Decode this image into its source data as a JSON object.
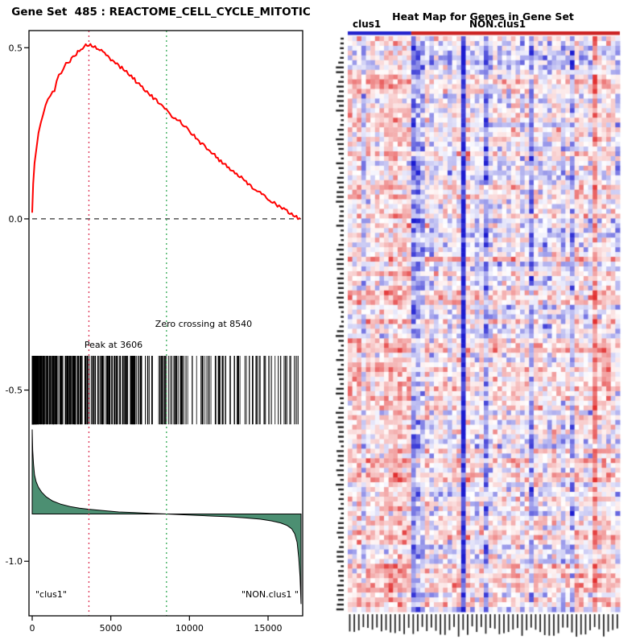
{
  "chart_data": [
    {
      "type": "line",
      "title": "Gene Set  485 : REACTOME_CELL_CYCLE_MITOTIC",
      "xlabel": "",
      "ylabel": "",
      "xlim": [
        0,
        17100
      ],
      "ylim": [
        -1.16,
        0.55
      ],
      "x_ticks": [
        {
          "v": 0,
          "label": "0"
        },
        {
          "v": 5000,
          "label": "5000"
        },
        {
          "v": 10000,
          "label": "10000"
        },
        {
          "v": 15000,
          "label": "15000"
        }
      ],
      "y_ticks": [
        {
          "v": 0.5,
          "label": "0.5"
        },
        {
          "v": 0.0,
          "label": "0.0"
        },
        {
          "v": -0.5,
          "label": "-0.5"
        },
        {
          "v": -1.0,
          "label": "-1.0"
        }
      ],
      "zero_line_es": 0.0,
      "annotations": {
        "peak": {
          "x": 3606,
          "label": "Peak at 3606",
          "color": "#dd3355"
        },
        "zero": {
          "x": 8540,
          "label": "Zero crossing at 8540",
          "color": "#33aa55"
        }
      },
      "groups": {
        "left": "\"clus1\"",
        "right": "\"NON.clus1 \""
      },
      "series": [
        {
          "name": "running_enrichment_score",
          "color": "#ff0000",
          "points": [
            [
              0,
              0.02
            ],
            [
              60,
              0.1
            ],
            [
              150,
              0.16
            ],
            [
              260,
              0.205
            ],
            [
              400,
              0.25
            ],
            [
              550,
              0.285
            ],
            [
              700,
              0.305
            ],
            [
              850,
              0.33
            ],
            [
              1000,
              0.35
            ],
            [
              1150,
              0.355
            ],
            [
              1300,
              0.375
            ],
            [
              1420,
              0.37
            ],
            [
              1550,
              0.4
            ],
            [
              1700,
              0.42
            ],
            [
              1850,
              0.43
            ],
            [
              2000,
              0.44
            ],
            [
              2150,
              0.458
            ],
            [
              2300,
              0.452
            ],
            [
              2500,
              0.468
            ],
            [
              2700,
              0.478
            ],
            [
              2900,
              0.488
            ],
            [
              3100,
              0.497
            ],
            [
              3300,
              0.503
            ],
            [
              3606,
              0.51
            ],
            [
              3800,
              0.505
            ],
            [
              4000,
              0.5
            ],
            [
              4300,
              0.495
            ],
            [
              4600,
              0.482
            ],
            [
              5000,
              0.466
            ],
            [
              5400,
              0.452
            ],
            [
              5800,
              0.437
            ],
            [
              6200,
              0.421
            ],
            [
              6600,
              0.402
            ],
            [
              7000,
              0.386
            ],
            [
              7400,
              0.366
            ],
            [
              7800,
              0.35
            ],
            [
              8200,
              0.331
            ],
            [
              8540,
              0.316
            ],
            [
              9000,
              0.296
            ],
            [
              9300,
              0.29
            ],
            [
              9600,
              0.276
            ],
            [
              9900,
              0.262
            ],
            [
              10200,
              0.247
            ],
            [
              10600,
              0.226
            ],
            [
              11000,
              0.211
            ],
            [
              11400,
              0.196
            ],
            [
              11800,
              0.176
            ],
            [
              12200,
              0.161
            ],
            [
              12600,
              0.146
            ],
            [
              13000,
              0.131
            ],
            [
              13400,
              0.116
            ],
            [
              13800,
              0.101
            ],
            [
              14200,
              0.086
            ],
            [
              14600,
              0.071
            ],
            [
              15000,
              0.06
            ],
            [
              15400,
              0.046
            ],
            [
              15800,
              0.034
            ],
            [
              16200,
              0.022
            ],
            [
              16600,
              0.011
            ],
            [
              17000,
              0.002
            ]
          ]
        },
        {
          "name": "ranked_list_metric",
          "color": "#4c8f72",
          "baseline": -0.862,
          "points": [
            [
              0,
              -0.615
            ],
            [
              30,
              -0.675
            ],
            [
              80,
              -0.715
            ],
            [
              150,
              -0.748
            ],
            [
              250,
              -0.768
            ],
            [
              400,
              -0.784
            ],
            [
              600,
              -0.798
            ],
            [
              900,
              -0.812
            ],
            [
              1300,
              -0.824
            ],
            [
              1800,
              -0.833
            ],
            [
              2400,
              -0.84
            ],
            [
              3000,
              -0.845
            ],
            [
              3606,
              -0.848
            ],
            [
              4500,
              -0.852
            ],
            [
              5500,
              -0.856
            ],
            [
              6500,
              -0.858
            ],
            [
              7500,
              -0.86
            ],
            [
              8540,
              -0.862
            ],
            [
              9500,
              -0.864
            ],
            [
              10500,
              -0.866
            ],
            [
              11500,
              -0.868
            ],
            [
              12500,
              -0.87
            ],
            [
              13500,
              -0.873
            ],
            [
              14500,
              -0.877
            ],
            [
              15200,
              -0.882
            ],
            [
              15800,
              -0.888
            ],
            [
              16200,
              -0.895
            ],
            [
              16500,
              -0.905
            ],
            [
              16700,
              -0.92
            ],
            [
              16850,
              -0.945
            ],
            [
              16950,
              -0.99
            ],
            [
              17030,
              -1.045
            ],
            [
              17100,
              -1.125
            ]
          ]
        }
      ],
      "hit_ticks": {
        "count": 430,
        "es_top": -0.4,
        "es_bottom": -0.6,
        "seed": 11,
        "skew": 2.1
      }
    },
    {
      "type": "heatmap",
      "title": "Heat Map for Genes in Gene Set",
      "col_groups": [
        {
          "label": "clus1",
          "cols": 14,
          "color": "#2222cc"
        },
        {
          "label": "NON.clus1",
          "cols": 46,
          "color": "#cc2222"
        }
      ],
      "rows": 120,
      "cols": 60,
      "seed": 13,
      "clus1_bias": 0.55,
      "special_col_bias": {
        "3": -0.5,
        "14": -1.3,
        "15": -0.9,
        "16": -0.7,
        "25": -2.4,
        "30": -1.3,
        "40": -1.2,
        "49": -0.9,
        "54": 1.5
      },
      "palette": {
        "low": "#1c1cd0",
        "mid": "#ffffff",
        "high": "#e23030"
      }
    }
  ]
}
